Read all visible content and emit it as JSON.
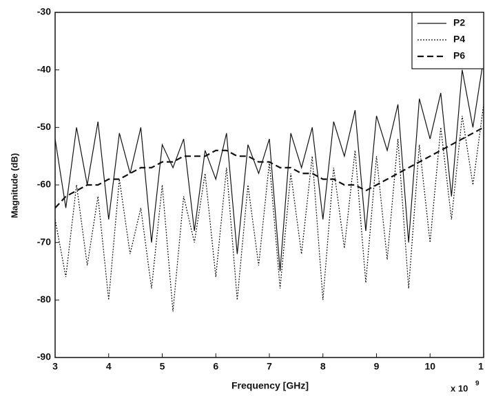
{
  "chart_data": {
    "type": "line",
    "x_label": "Frequency [GHz]",
    "y_label": "Magnitude (dB)",
    "x_multiplier": "x 10",
    "x_multiplier_exponent": "9",
    "x": [
      3.0,
      3.2,
      3.4,
      3.6,
      3.8,
      4.0,
      4.2,
      4.4,
      4.6,
      4.8,
      5.0,
      5.2,
      5.4,
      5.6,
      5.8,
      6.0,
      6.2,
      6.4,
      6.6,
      6.8,
      7.0,
      7.2,
      7.4,
      7.6,
      7.8,
      8.0,
      8.2,
      8.4,
      8.6,
      8.8,
      9.0,
      9.2,
      9.4,
      9.6,
      9.8,
      10.0,
      10.2,
      10.4,
      10.6,
      10.8,
      11.0
    ],
    "series": [
      {
        "name": "P2",
        "color": "#111111",
        "line_style": "solid",
        "values": [
          -52,
          -64,
          -50,
          -60,
          -49,
          -66,
          -51,
          -58,
          -50,
          -70,
          -53,
          -57,
          -52,
          -68,
          -54,
          -59,
          -51,
          -72,
          -53,
          -58,
          -52,
          -75,
          -51,
          -57,
          -50,
          -66,
          -49,
          -55,
          -47,
          -68,
          -48,
          -54,
          -46,
          -70,
          -45,
          -52,
          -44,
          -62,
          -40,
          -50,
          -38
        ]
      },
      {
        "name": "P4",
        "color": "#111111",
        "line_style": "dotted",
        "values": [
          -66,
          -76,
          -60,
          -74,
          -62,
          -80,
          -59,
          -72,
          -64,
          -78,
          -60,
          -82,
          -62,
          -70,
          -58,
          -76,
          -57,
          -80,
          -60,
          -74,
          -56,
          -78,
          -58,
          -72,
          -55,
          -80,
          -57,
          -71,
          -54,
          -77,
          -55,
          -73,
          -52,
          -78,
          -53,
          -70,
          -50,
          -66,
          -48,
          -60,
          -46
        ]
      },
      {
        "name": "P6",
        "color": "#111111",
        "line_style": "dashed",
        "values": [
          -64,
          -62,
          -61,
          -60,
          -60,
          -59,
          -59,
          -58,
          -57,
          -57,
          -56,
          -56,
          -55,
          -55,
          -55,
          -54,
          -54,
          -55,
          -55,
          -56,
          -56,
          -57,
          -57,
          -58,
          -58,
          -59,
          -59,
          -60,
          -60,
          -61,
          -60,
          -59,
          -58,
          -57,
          -56,
          -55,
          -54,
          -53,
          -52,
          -51,
          -50
        ]
      }
    ],
    "xlim": [
      3,
      11
    ],
    "xticks": [
      3,
      4,
      5,
      6,
      7,
      8,
      9,
      10,
      {
        "value": 11,
        "label": "1"
      }
    ],
    "ylim": [
      -90,
      -30
    ],
    "yticks": [
      -90,
      -80,
      -70,
      -60,
      -50,
      -40,
      -30
    ],
    "grid": false,
    "legend": "upper right"
  }
}
